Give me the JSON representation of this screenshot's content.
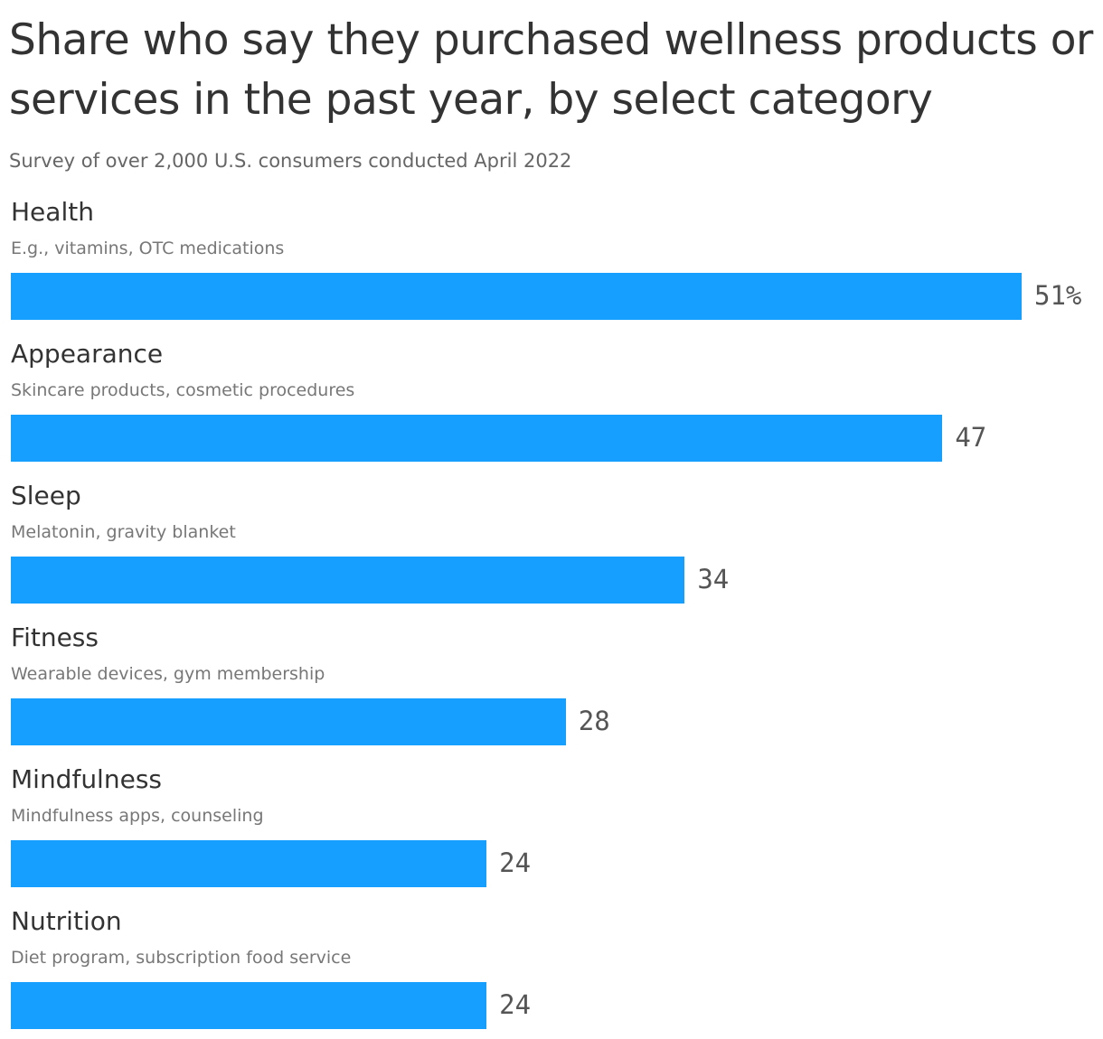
{
  "chart_data": {
    "type": "bar",
    "orientation": "horizontal",
    "title": "Share who say they purchased wellness products or services in the past year, by select category",
    "subtitle": "Survey of over 2,000 U.S. consumers conducted April 2022",
    "categories": [
      "Health",
      "Appearance",
      "Sleep",
      "Fitness",
      "Mindfulness",
      "Nutrition"
    ],
    "category_notes": [
      "E.g., vitamins, OTC medications",
      "Skincare products, cosmetic procedures",
      "Melatonin, gravity blanket",
      "Wearable devices, gym membership",
      "Mindfulness apps, counseling",
      "Diet program, subscription food service"
    ],
    "values": [
      51,
      47,
      34,
      28,
      24,
      24
    ],
    "value_labels": [
      "51%",
      "47",
      "34",
      "28",
      "24",
      "24"
    ],
    "color": "#179fff"
  }
}
